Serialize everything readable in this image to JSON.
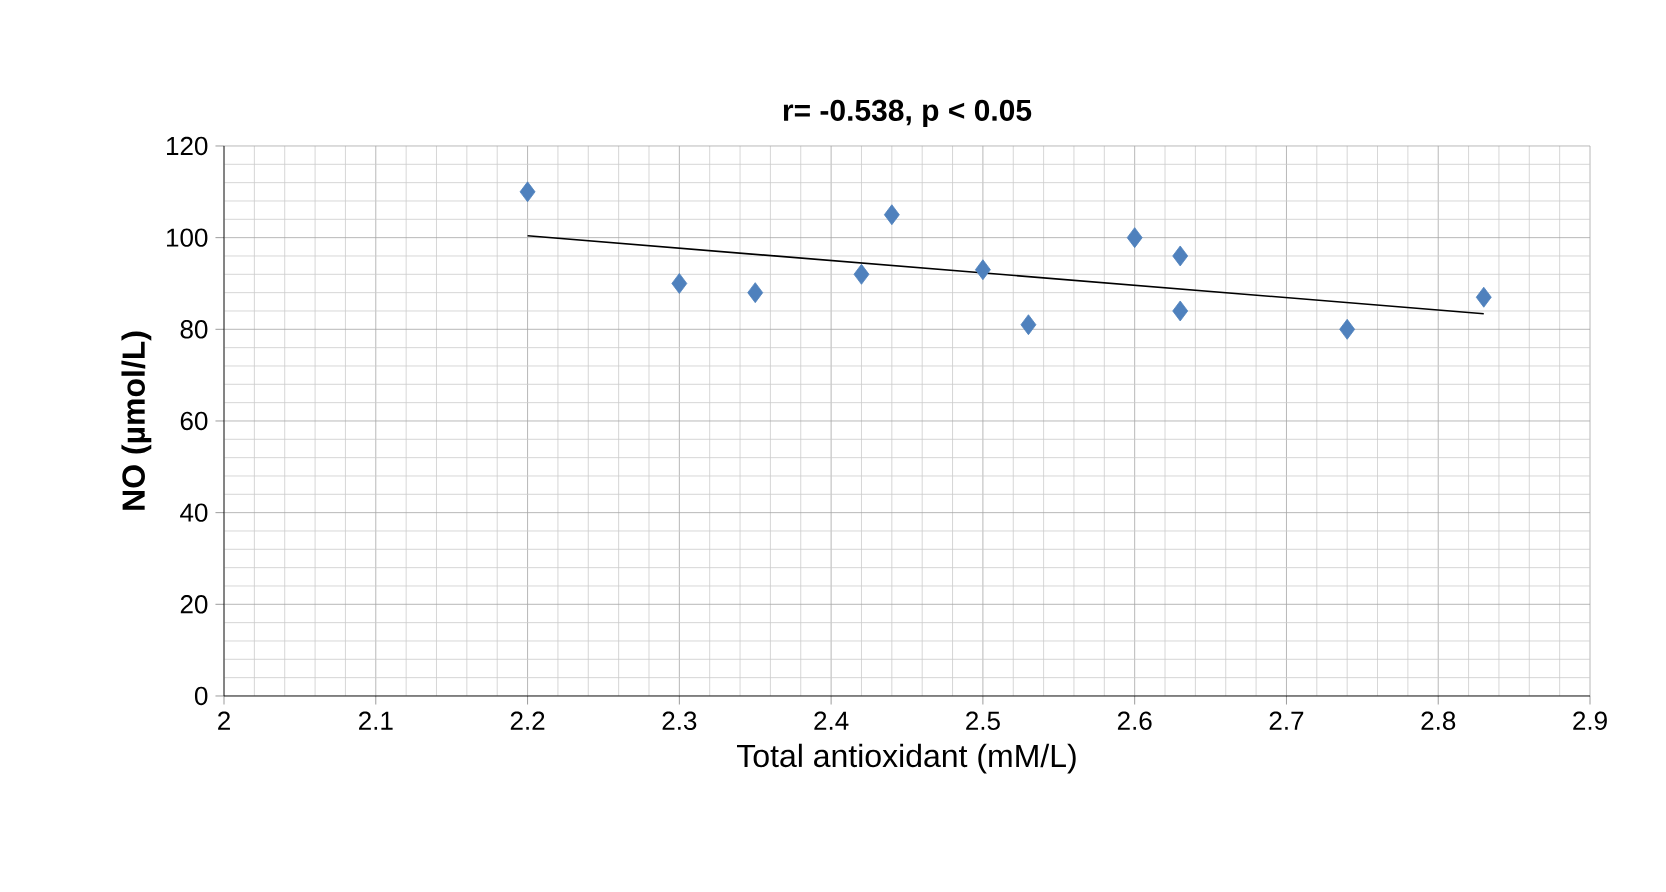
{
  "chart_data": {
    "type": "scatter",
    "title": "**r= -0.538, p < 0.05**",
    "xlabel": "Total antioxidant (mM/L)",
    "ylabel": "NO (µmol/L)",
    "xlim": [
      2,
      2.9
    ],
    "xticks": [
      2,
      2.1,
      2.2,
      2.3,
      2.4,
      2.5,
      2.6,
      2.7,
      2.8,
      2.9
    ],
    "ylim": [
      0,
      120
    ],
    "yticks": [
      0,
      20,
      40,
      60,
      80,
      100,
      120
    ],
    "grid": true,
    "marker": "diamond",
    "series": [
      {
        "color": "#4f81bd",
        "x": [
          2.2,
          2.3,
          2.35,
          2.42,
          2.44,
          2.5,
          2.53,
          2.6,
          2.63,
          2.63,
          2.74,
          2.83
        ],
        "values": [
          110,
          90,
          88,
          92,
          105,
          93,
          81,
          100,
          96,
          84,
          80,
          87
        ]
      },
      {
        "type": "line",
        "marker": "none",
        "color": "#000000",
        "x": [
          2.2,
          2.83
        ],
        "values": [
          100.4,
          83.4
        ]
      }
    ]
  }
}
